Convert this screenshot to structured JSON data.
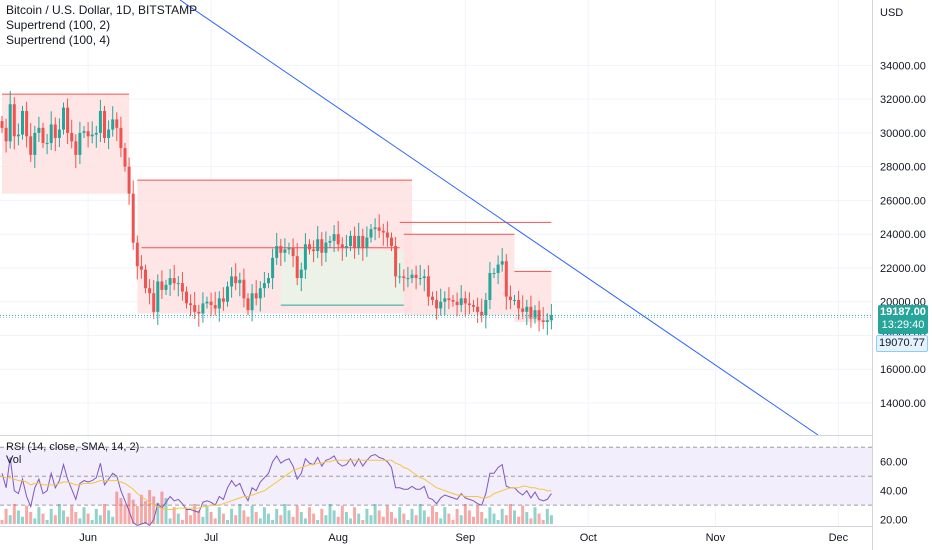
{
  "header": {
    "title": "Bitcoin / U.S. Dollar, 1D, BITSTAMP",
    "indicators": [
      "Supertrend (100, 2)",
      "Supertrend (100, 4)"
    ]
  },
  "rsi_panel": {
    "title": "RSI (14, close, SMA, 14, 2)",
    "vol_label": "Vol"
  },
  "price_axis": {
    "currency": "USD",
    "last_price": "19187.00",
    "countdown": "13:29:40",
    "second_price": "19070.77"
  },
  "colors": {
    "up": "#26a69a",
    "down": "#ef5350",
    "trendline": "#2962ff",
    "bull_fill": "#e8f5e9",
    "bear_fill": "#ffe0e0",
    "rsi": "#7e57c2",
    "rsi_ma": "#f5c542"
  },
  "chart_data": [
    {
      "type": "candlestick",
      "title": "Bitcoin / U.S. Dollar, 1D, BITSTAMP",
      "x_ticks": [
        "Jun",
        "Jul",
        "Aug",
        "Sep",
        "Oct",
        "Nov",
        "Dec"
      ],
      "y_ticks": [
        "14000.00",
        "16000.00",
        "18000.00",
        "20000.00",
        "22000.00",
        "24000.00",
        "26000.00",
        "28000.00",
        "30000.00",
        "32000.00",
        "34000.00"
      ],
      "ylim": [
        12400,
        35800
      ],
      "close_series": [
        30300,
        29500,
        31700,
        29800,
        29900,
        31300,
        29800,
        28700,
        30000,
        30300,
        29400,
        29400,
        30500,
        29700,
        30200,
        31500,
        30000,
        29500,
        28700,
        30000,
        30100,
        29800,
        29900,
        30000,
        31300,
        29700,
        30200,
        30800,
        30300,
        29100,
        28000,
        26400,
        23500,
        22100,
        21900,
        20800,
        20500,
        19400,
        21200,
        20700,
        21000,
        21400,
        21100,
        21100,
        20600,
        19900,
        19800,
        19400,
        19300,
        19900,
        20000,
        19800,
        19600,
        20200,
        20000,
        20900,
        21500,
        21100,
        21300,
        20200,
        19500,
        20500,
        20200,
        20800,
        21100,
        21400,
        22600,
        23300,
        22900,
        23100,
        23200,
        22700,
        21400,
        21900,
        23400,
        23100,
        23000,
        23700,
        22900,
        23500,
        23600,
        24000,
        23400,
        23200,
        23300,
        23900,
        23200,
        23900,
        23200,
        23800,
        24300,
        24400,
        24200,
        24100,
        23800,
        23300,
        21500,
        21500,
        21400,
        21400,
        21600,
        21400,
        21400,
        21500,
        20300,
        20100,
        19600,
        20000,
        20200,
        20100,
        20000,
        19800,
        20200,
        19900,
        19800,
        19700,
        19400,
        19200,
        20100,
        21700,
        21700,
        22200,
        22400,
        20300,
        20100,
        20100,
        19600,
        19400,
        19700,
        19000,
        19500,
        18900,
        18800,
        18900,
        19200
      ],
      "supertrend_100_2": {
        "phase1": {
          "level": 32300,
          "direction": "down"
        },
        "phase2": {
          "level": 27200,
          "direction": "down"
        },
        "phase3": {
          "level": 19800,
          "direction": "up"
        },
        "phase4": {
          "level": 24000,
          "direction": "down"
        },
        "phase5": {
          "level": 21800,
          "direction": "down"
        }
      },
      "supertrend_100_4": {
        "level_jul": 23200,
        "level_sep": 24700,
        "direction": "down"
      },
      "last_price": 19187.0,
      "second_price": 19070.77
    },
    {
      "type": "line",
      "title": "RSI (14, close, SMA, 14, 2)",
      "y_ticks": [
        "20.00",
        "40.00",
        "60.00"
      ],
      "ylim": [
        17,
        75
      ],
      "bands": [
        30,
        50,
        70
      ],
      "series": [
        {
          "values": [
            52,
            42,
            63,
            40,
            38,
            48,
            36,
            29,
            42,
            48,
            38,
            40,
            52,
            42,
            47,
            58,
            48,
            41,
            34,
            45,
            47,
            46,
            47,
            49,
            59,
            44,
            48,
            52,
            50,
            40,
            33,
            26,
            18,
            16,
            17,
            18,
            16,
            20,
            31,
            28,
            32,
            36,
            33,
            34,
            31,
            27,
            27,
            26,
            25,
            32,
            33,
            32,
            30,
            36,
            34,
            42,
            47,
            43,
            45,
            38,
            33,
            42,
            40,
            46,
            49,
            52,
            60,
            64,
            59,
            61,
            62,
            57,
            48,
            52,
            62,
            59,
            58,
            63,
            57,
            61,
            62,
            64,
            59,
            57,
            58,
            62,
            57,
            62,
            57,
            61,
            64,
            65,
            63,
            62,
            60,
            56,
            42,
            42,
            41,
            41,
            43,
            41,
            41,
            43,
            35,
            34,
            31,
            35,
            37,
            36,
            35,
            34,
            38,
            35,
            34,
            33,
            31,
            30,
            38,
            52,
            52,
            56,
            58,
            43,
            42,
            42,
            39,
            37,
            40,
            35,
            39,
            34,
            33,
            34,
            38
          ]
        },
        {
          "values": [
            50,
            49,
            49,
            48,
            47,
            47,
            46,
            44,
            45,
            45,
            44,
            44,
            44,
            44,
            45,
            46,
            46,
            45,
            44,
            44,
            45,
            45,
            45,
            46,
            47,
            47,
            47,
            47,
            47,
            46,
            45,
            43,
            41,
            38,
            36,
            34,
            32,
            30,
            29,
            28,
            27,
            27,
            27,
            28,
            28,
            28,
            28,
            28,
            28,
            29,
            29,
            30,
            30,
            30,
            31,
            32,
            33,
            34,
            35,
            36,
            36,
            37,
            38,
            39,
            40,
            42,
            44,
            46,
            48,
            50,
            52,
            54,
            55,
            56,
            57,
            58,
            58,
            59,
            59,
            60,
            60,
            61,
            61,
            61,
            61,
            61,
            61,
            61,
            61,
            61,
            61,
            61,
            61,
            61,
            61,
            61,
            59,
            58,
            56,
            55,
            53,
            51,
            49,
            48,
            46,
            44,
            42,
            41,
            40,
            39,
            38,
            37,
            37,
            36,
            36,
            36,
            36,
            35,
            35,
            36,
            38,
            39,
            40,
            41,
            42,
            42,
            42,
            43,
            43,
            42,
            42,
            41,
            41,
            40,
            40
          ]
        }
      ]
    }
  ]
}
